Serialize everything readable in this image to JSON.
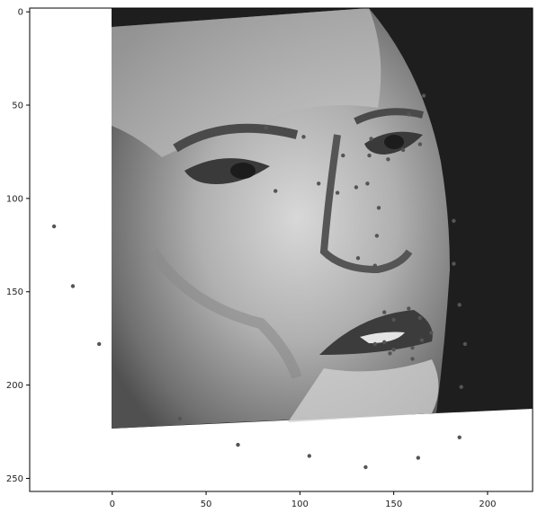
{
  "chart_data": {
    "type": "scatter",
    "title": "",
    "xlabel": "",
    "ylabel": "",
    "xlim": [
      -44,
      224
    ],
    "ylim": [
      257,
      -2
    ],
    "y_inverted": true,
    "grid": false,
    "image_background": {
      "description": "rotated grayscale face photograph",
      "extent_x": [
        0,
        224
      ],
      "extent_y": [
        0,
        224
      ],
      "rotation_deg": -4
    },
    "x_ticks": [
      0,
      50,
      100,
      150,
      200
    ],
    "y_ticks": [
      0,
      50,
      100,
      150,
      200,
      250
    ],
    "marker_color": "#555555",
    "series": [
      {
        "points": [
          [
            -31,
            115
          ],
          [
            -21,
            147
          ],
          [
            -7,
            178
          ],
          [
            10,
            201
          ],
          [
            36,
            218
          ],
          [
            67,
            232
          ],
          [
            105,
            238
          ],
          [
            135,
            244
          ],
          [
            163,
            239
          ],
          [
            185,
            228
          ],
          [
            186,
            201
          ],
          [
            188,
            178
          ],
          [
            185,
            157
          ],
          [
            182,
            135
          ],
          [
            182,
            112
          ],
          [
            82,
            62
          ],
          [
            102,
            67
          ],
          [
            120,
            70
          ],
          [
            138,
            68
          ],
          [
            158,
            55
          ],
          [
            166,
            45
          ],
          [
            123,
            77
          ],
          [
            136,
            92
          ],
          [
            142,
            105
          ],
          [
            141,
            120
          ],
          [
            131,
            132
          ],
          [
            140,
            136
          ],
          [
            148,
            137
          ],
          [
            155,
            133
          ],
          [
            87,
            96
          ],
          [
            110,
            92
          ],
          [
            120,
            97
          ],
          [
            130,
            94
          ],
          [
            137,
            77
          ],
          [
            147,
            79
          ],
          [
            155,
            74
          ],
          [
            164,
            71
          ],
          [
            145,
            161
          ],
          [
            150,
            165
          ],
          [
            158,
            159
          ],
          [
            164,
            164
          ],
          [
            170,
            172
          ],
          [
            160,
            180
          ],
          [
            150,
            181
          ],
          [
            145,
            177
          ],
          [
            140,
            178
          ],
          [
            148,
            183
          ],
          [
            160,
            186
          ],
          [
            165,
            176
          ]
        ]
      }
    ]
  }
}
